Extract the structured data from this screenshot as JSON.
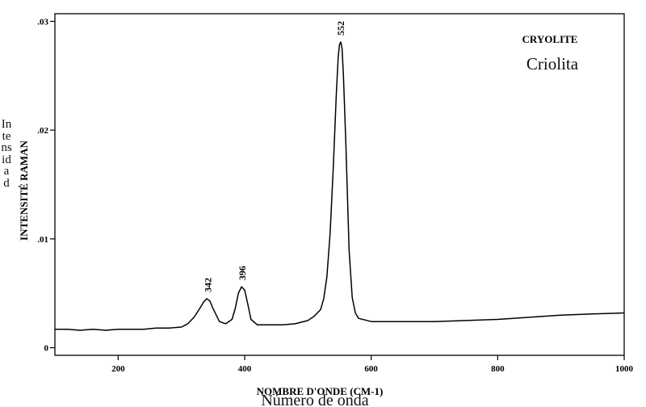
{
  "chart_data": {
    "type": "line",
    "title": "CRYOLITE",
    "subtitle": "Criolita",
    "xlabel": "NOMBRE D'ONDE (CM-1)",
    "xlabel_es": "Número de onda",
    "ylabel": "INTENSITÉ RAMAN",
    "ylabel_es": "Intensidad",
    "xlim": [
      100,
      1000
    ],
    "ylim": [
      -0.0007,
      0.0307
    ],
    "xticks": [
      200,
      400,
      600,
      800,
      1000
    ],
    "xtick_labels": [
      "200",
      "400",
      "600",
      "800",
      "1000"
    ],
    "yticks": [
      0,
      0.01,
      0.02,
      0.03
    ],
    "ytick_labels": [
      "0",
      ".01",
      ".02",
      ".03"
    ],
    "grid": false,
    "series": [
      {
        "color": "#000000",
        "x": [
          100,
          120,
          140,
          160,
          180,
          200,
          220,
          240,
          260,
          280,
          300,
          310,
          320,
          330,
          335,
          340,
          345,
          350,
          355,
          360,
          370,
          380,
          385,
          390,
          395,
          400,
          405,
          410,
          420,
          440,
          460,
          480,
          500,
          510,
          520,
          525,
          530,
          535,
          540,
          545,
          548,
          550,
          552,
          554,
          556,
          560,
          565,
          570,
          575,
          580,
          600,
          650,
          700,
          750,
          800,
          850,
          900,
          950,
          1000
        ],
        "y": [
          0.0017,
          0.0017,
          0.0016,
          0.0017,
          0.0016,
          0.0017,
          0.0017,
          0.0017,
          0.0018,
          0.0018,
          0.0019,
          0.0022,
          0.0028,
          0.0037,
          0.0042,
          0.0045,
          0.0043,
          0.0036,
          0.003,
          0.0024,
          0.0022,
          0.0026,
          0.0036,
          0.005,
          0.0056,
          0.0053,
          0.004,
          0.0026,
          0.0021,
          0.0021,
          0.0021,
          0.0022,
          0.0025,
          0.0029,
          0.0035,
          0.0045,
          0.0065,
          0.0105,
          0.0165,
          0.0235,
          0.0268,
          0.0279,
          0.0281,
          0.0275,
          0.0252,
          0.0188,
          0.009,
          0.0046,
          0.0032,
          0.0027,
          0.0024,
          0.0024,
          0.0024,
          0.0025,
          0.0026,
          0.0028,
          0.003,
          0.0031,
          0.0032
        ]
      }
    ],
    "annotations": [
      {
        "text": "342",
        "x": 342,
        "y": 0.0045
      },
      {
        "text": "396",
        "x": 396,
        "y": 0.0056
      },
      {
        "text": "552",
        "x": 552,
        "y": 0.0281
      }
    ]
  }
}
